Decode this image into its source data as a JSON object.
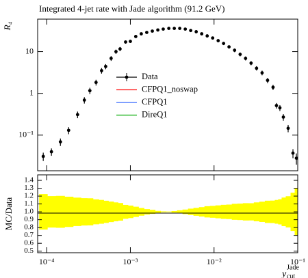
{
  "chart_data": {
    "type": "errorbar",
    "title": "Integrated 4-jet rate with Jade algorithm (91.2 GeV)",
    "ylabel": "R₄",
    "xlabel": {
      "main": "y",
      "sub": "cut",
      "sup": "Jade"
    },
    "xscale": "log",
    "yscale": "log",
    "xlim": [
      7.8e-05,
      0.1
    ],
    "xticks": [
      {
        "value": 0.0001,
        "label": "10⁻⁴"
      },
      {
        "value": 0.001,
        "label": "10⁻³"
      },
      {
        "value": 0.01,
        "label": "10⁻²"
      },
      {
        "value": 0.1,
        "label": "10⁻¹"
      }
    ],
    "ylim": [
      0.014,
      60
    ],
    "yticks": [
      {
        "value": 0.1,
        "label": "10⁻¹"
      },
      1,
      10
    ],
    "legend": "upper-center",
    "series": [
      {
        "name": "Data",
        "color": "#000000",
        "x": [
          9.1e-05,
          0.000114,
          0.000146,
          0.000183,
          0.000234,
          0.000282,
          0.000328,
          0.000389,
          0.000453,
          0.000507,
          0.000589,
          0.000673,
          0.000753,
          0.000877,
          0.001,
          0.00116,
          0.00135,
          0.00157,
          0.00183,
          0.00213,
          0.00247,
          0.00288,
          0.00335,
          0.00389,
          0.00453,
          0.00526,
          0.00612,
          0.00712,
          0.00828,
          0.00963,
          0.0112,
          0.013,
          0.0151,
          0.0176,
          0.0205,
          0.0238,
          0.0277,
          0.0322,
          0.0375,
          0.0436,
          0.0507,
          0.0557,
          0.0612,
          0.0673,
          0.0768,
          0.0877,
          0.0964
        ],
        "values": [
          0.031,
          0.04,
          0.069,
          0.13,
          0.31,
          0.69,
          1.16,
          1.83,
          3.5,
          4.4,
          6.9,
          10,
          11.6,
          17,
          17.6,
          23,
          26.7,
          28.8,
          31,
          33,
          34.6,
          36,
          36,
          36,
          34.6,
          32,
          30,
          26.7,
          23.8,
          21.2,
          18.3,
          15.7,
          13,
          10.8,
          8.6,
          6.9,
          5.3,
          4.0,
          3.1,
          2.05,
          1.4,
          0.51,
          0.45,
          0.27,
          0.146,
          0.037,
          0.028
        ],
        "errors": [
          0.007,
          0.008,
          0.014,
          0.025,
          0.056,
          0.12,
          0.2,
          0.29,
          0.53,
          0.62,
          0.9,
          1.2,
          1.3,
          1.5,
          1.4,
          1.5,
          1.3,
          1.0,
          0.8,
          0.4,
          0.2,
          0.15,
          0.36,
          0.7,
          1.0,
          1.3,
          1.5,
          1.6,
          1.7,
          1.6,
          1.5,
          1.4,
          1.2,
          1.1,
          0.9,
          0.76,
          0.58,
          0.48,
          0.4,
          0.29,
          0.2,
          0.077,
          0.072,
          0.049,
          0.029,
          0.009,
          0.0084
        ]
      },
      {
        "name": "CFPQ1_noswap",
        "color": "#ff0000"
      },
      {
        "name": "CFPQ1",
        "color": "#3366ff"
      },
      {
        "name": "DireQ1",
        "color": "#00aa00"
      }
    ],
    "ratio": {
      "ylabel": "MC/Data",
      "band_color": "#ffff00",
      "ylim": [
        0.48,
        1.47
      ],
      "yticks": [
        0.5,
        0.6,
        0.7,
        0.8,
        0.9,
        {
          "value": 1,
          "label": "1.0"
        },
        1.1,
        1.2,
        1.3,
        1.4
      ]
    }
  }
}
